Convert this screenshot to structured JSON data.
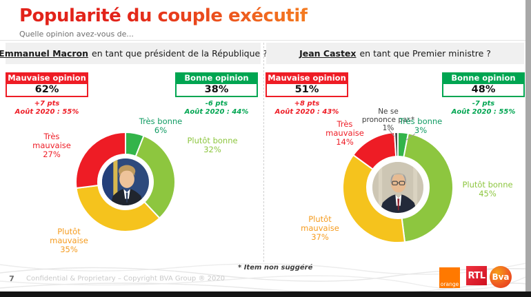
{
  "page": {
    "title": "Popularité du couple exécutif",
    "subtitle": "Quelle opinion avez-vous de...",
    "footnote": "* Item non suggéré",
    "page_number": "7",
    "copyright": "Confidential & Proprietary – Copyright BVA Group ® 2020"
  },
  "logos": {
    "orange": "orange",
    "rtl": "RTL",
    "bva": "Bva"
  },
  "colors": {
    "bad_red": "#ee1c25",
    "good_green": "#00a551",
    "slice_light_green": "#8dc63f",
    "slice_mid_green": "#33b44a",
    "slice_yellow": "#f5c31d",
    "slice_gray": "#4a4a4a",
    "label_orange": "#f59b1e",
    "label_dark_green": "#0f9b62",
    "title_gradient": [
      "#e2231a",
      "#f47b20"
    ]
  },
  "chart_data": [
    {
      "type": "pie",
      "variant": "donut",
      "subject": "Emmanuel Macron",
      "question": "en tant que président de la République ?",
      "center_photo_alt": "Emmanuel Macron",
      "summary": {
        "bad": {
          "label": "Mauvaise opinion",
          "value": "62%",
          "delta": "+7 pts",
          "previous": "Août 2020 : 55%"
        },
        "good": {
          "label": "Bonne opinion",
          "value": "38%",
          "delta": "-6 pts",
          "previous": "Août 2020 : 44%"
        }
      },
      "segments": [
        {
          "label": "Très bonne",
          "value": 6,
          "display": "6%",
          "color": "#33b44a",
          "label_color": "#0f9b62"
        },
        {
          "label": "Plutôt bonne",
          "value": 32,
          "display": "32%",
          "color": "#8dc63f",
          "label_color": "#8dc63f"
        },
        {
          "label": "Plutôt mauvaise",
          "value": 35,
          "display": "35%",
          "color": "#f5c31d",
          "label_color": "#f59b1e"
        },
        {
          "label": "Très mauvaise",
          "value": 27,
          "display": "27%",
          "color": "#ee1c25",
          "label_color": "#ee1c25"
        }
      ]
    },
    {
      "type": "pie",
      "variant": "donut",
      "subject": "Jean Castex",
      "question": "en tant que Premier ministre ?",
      "center_photo_alt": "Jean Castex",
      "summary": {
        "bad": {
          "label": "Mauvaise opinion",
          "value": "51%",
          "delta": "+8 pts",
          "previous": "Août 2020 : 43%"
        },
        "good": {
          "label": "Bonne opinion",
          "value": "48%",
          "delta": "-7 pts",
          "previous": "Août 2020 : 55%"
        }
      },
      "segments": [
        {
          "label": "Très bonne",
          "value": 3,
          "display": "3%",
          "color": "#33b44a",
          "label_color": "#0f9b62"
        },
        {
          "label": "Plutôt bonne",
          "value": 45,
          "display": "45%",
          "color": "#8dc63f",
          "label_color": "#8dc63f"
        },
        {
          "label": "Plutôt mauvaise",
          "value": 37,
          "display": "37%",
          "color": "#f5c31d",
          "label_color": "#f59b1e"
        },
        {
          "label": "Très mauvaise",
          "value": 14,
          "display": "14%",
          "color": "#ee1c25",
          "label_color": "#ee1c25"
        },
        {
          "label": "Ne se prononce pas*",
          "value": 1,
          "display": "1%",
          "color": "#4a4a4a",
          "label_color": "#3d3d3d"
        }
      ]
    }
  ]
}
